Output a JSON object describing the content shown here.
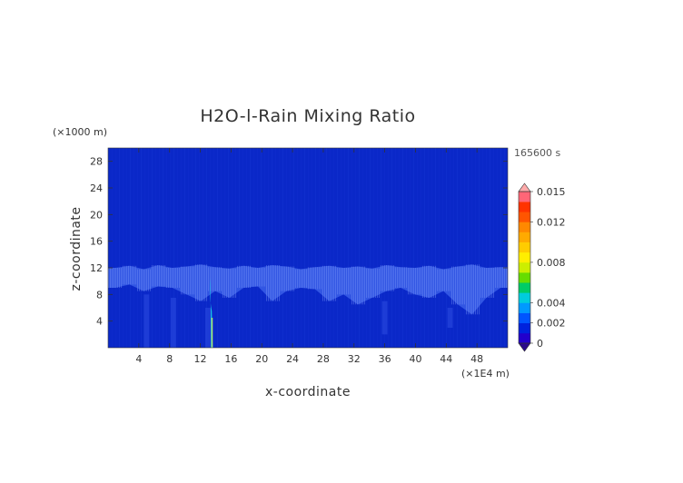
{
  "chart_data": {
    "type": "heatmap",
    "title": "H2O-l-Rain Mixing Ratio",
    "xlabel": "x-coordinate",
    "ylabel": "z-coordinate",
    "x_unit": "(×1E4 m)",
    "y_unit": "(×1000 m)",
    "time_label": "165600 s",
    "xlim": [
      0,
      52
    ],
    "ylim": [
      0,
      30
    ],
    "x_ticks": [
      4,
      8,
      12,
      16,
      20,
      24,
      28,
      32,
      36,
      40,
      44,
      48
    ],
    "y_ticks": [
      4,
      8,
      12,
      16,
      20,
      24,
      28
    ],
    "colorbar": {
      "min": 0,
      "max": 0.015,
      "tick_labels": [
        "0.015",
        "0.012",
        "0.008",
        "0.004",
        "0.002",
        "0"
      ],
      "tick_values": [
        0.015,
        0.012,
        0.008,
        0.004,
        0.002,
        0
      ],
      "colors": [
        "#2200cc",
        "#0022dd",
        "#0055ff",
        "#0099ff",
        "#00ccdd",
        "#00cc66",
        "#66dd00",
        "#ccee00",
        "#ffee00",
        "#ffcc00",
        "#ffaa00",
        "#ff8800",
        "#ff5500",
        "#ff3300",
        "#ff6677"
      ],
      "under_color": "#2a0a8a",
      "over_color": "#ffaaaa"
    },
    "background_value": 0,
    "cloud_layer_top_km": [
      12.0,
      12.3,
      11.8,
      12.4,
      12.0,
      12.2,
      12.5,
      12.1,
      11.9,
      12.3,
      12.0,
      12.4,
      12.2,
      11.8,
      12.1,
      12.3,
      12.0,
      12.2,
      11.9,
      12.4,
      12.1,
      12.0,
      12.3,
      11.8,
      12.2,
      12.5,
      12.0,
      12.1
    ],
    "cloud_layer_bottom_km": [
      9.0,
      9.5,
      8.5,
      9.2,
      9.0,
      8.0,
      7.0,
      8.5,
      7.5,
      9.0,
      9.2,
      7.0,
      8.5,
      9.0,
      8.8,
      7.0,
      8.0,
      6.5,
      7.5,
      8.5,
      9.0,
      8.0,
      7.5,
      8.5,
      6.5,
      5.0,
      7.5,
      9.0
    ],
    "rain_shaft": {
      "x": 13.5,
      "z_top": 10.5,
      "z_bottom": 0,
      "peak_value": 0.002
    }
  }
}
